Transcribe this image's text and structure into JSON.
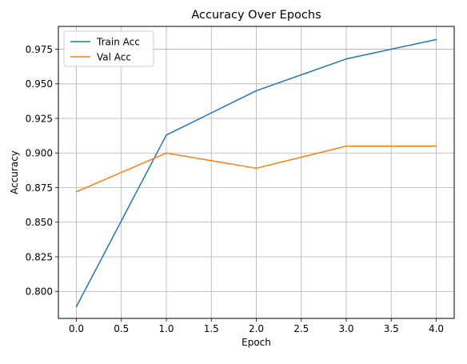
{
  "chart_data": {
    "type": "line",
    "title": "Accuracy Over Epochs",
    "xlabel": "Epoch",
    "ylabel": "Accuracy",
    "x": [
      0,
      1,
      2,
      3,
      4
    ],
    "series": [
      {
        "name": "Train Acc",
        "color": "#1f77b4",
        "values": [
          0.789,
          0.913,
          0.945,
          0.968,
          0.982
        ]
      },
      {
        "name": "Val Acc",
        "color": "#ff7f0e",
        "values": [
          0.872,
          0.9,
          0.889,
          0.905,
          0.905
        ]
      }
    ],
    "xlim": [
      -0.2,
      4.2
    ],
    "ylim": [
      0.7805,
      0.9915
    ],
    "xticks": [
      "0.0",
      "0.5",
      "1.0",
      "1.5",
      "2.0",
      "2.5",
      "3.0",
      "3.5",
      "4.0"
    ],
    "yticks": [
      "0.800",
      "0.825",
      "0.850",
      "0.875",
      "0.900",
      "0.925",
      "0.950",
      "0.975"
    ],
    "grid": true,
    "legend_position": "top-left"
  }
}
